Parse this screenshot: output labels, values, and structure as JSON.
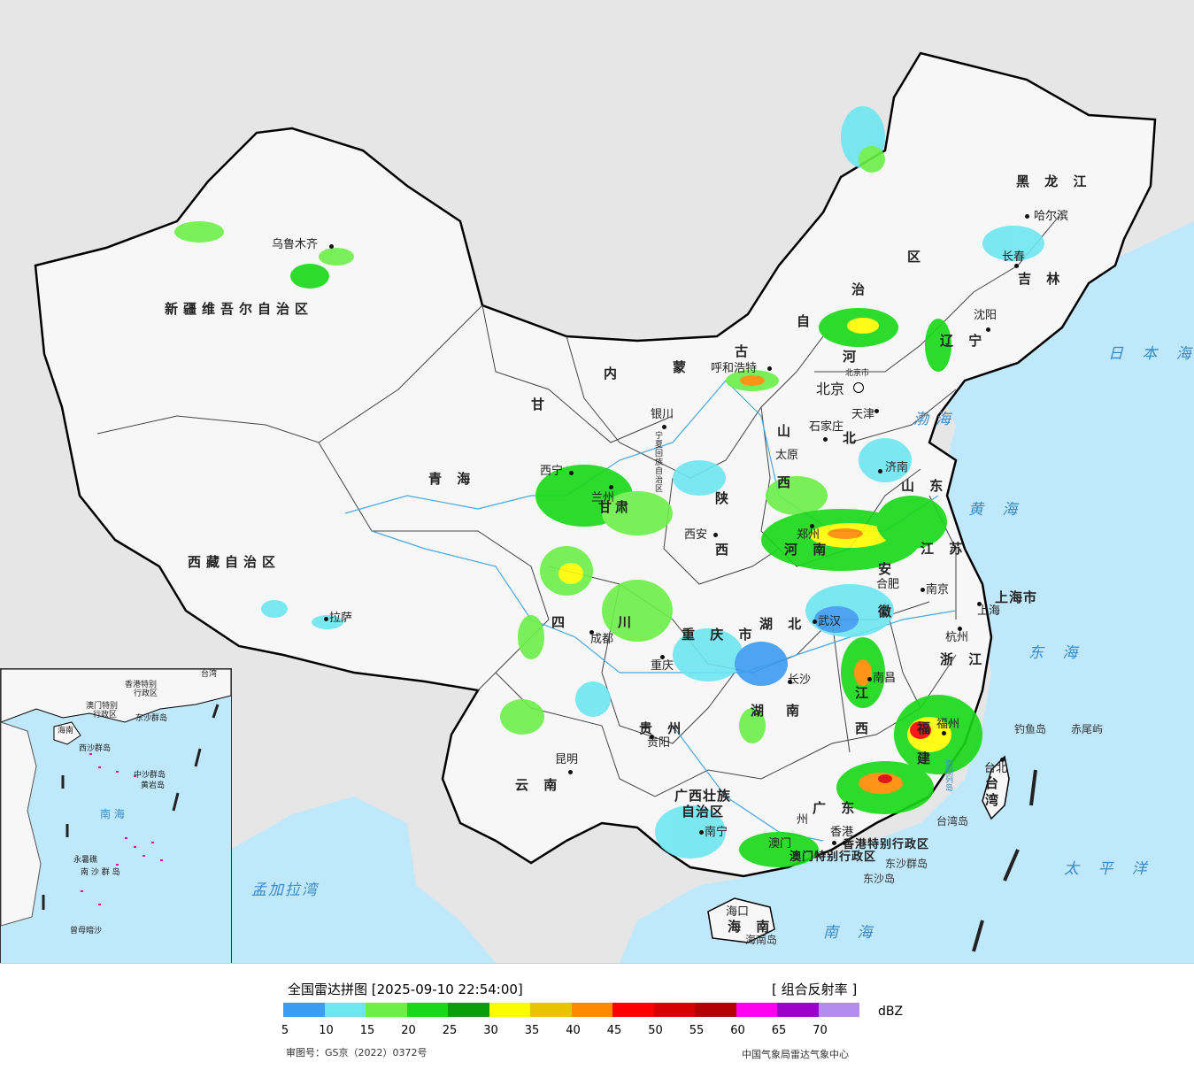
{
  "map": {
    "provinces": [
      {
        "id": "xinjiang",
        "text": "新疆维吾尔自治区"
      },
      {
        "id": "xizang",
        "text": "西藏自治区"
      },
      {
        "id": "qinghai",
        "text": "青  海"
      },
      {
        "id": "gansu",
        "text": "甘"
      },
      {
        "id": "neimenggu_1",
        "text": "内"
      },
      {
        "id": "neimenggu_2",
        "text": "蒙"
      },
      {
        "id": "neimenggu_3",
        "text": "古"
      },
      {
        "id": "neimenggu_4",
        "text": "自"
      },
      {
        "id": "neimenggu_5",
        "text": "治"
      },
      {
        "id": "neimenggu_6",
        "text": "区"
      },
      {
        "id": "heilongjiang",
        "text": "黑 龙 江"
      },
      {
        "id": "jilin",
        "text": "吉 林"
      },
      {
        "id": "liaoning",
        "text": "辽 宁"
      },
      {
        "id": "hebei_1",
        "text": "河"
      },
      {
        "id": "hebei_2",
        "text": "北"
      },
      {
        "id": "shanxi_1",
        "text": "山"
      },
      {
        "id": "shanxi_2",
        "text": "西"
      },
      {
        "id": "shandong",
        "text": "山 东"
      },
      {
        "id": "shaanxi_1",
        "text": "陕"
      },
      {
        "id": "shaanxi_2",
        "text": "西"
      },
      {
        "id": "henan",
        "text": "河 南"
      },
      {
        "id": "jiangsu",
        "text": "江 苏"
      },
      {
        "id": "anhui_1",
        "text": "安"
      },
      {
        "id": "anhui_2",
        "text": "徽"
      },
      {
        "id": "shanghai",
        "text": "上海市"
      },
      {
        "id": "hubei",
        "text": "湖  北"
      },
      {
        "id": "zhejiang",
        "text": "浙 江"
      },
      {
        "id": "sichuan_1",
        "text": "四"
      },
      {
        "id": "sichuan_2",
        "text": "川"
      },
      {
        "id": "chongqing",
        "text": "重 庆 市"
      },
      {
        "id": "hunan_1",
        "text": "湖"
      },
      {
        "id": "hunan_2",
        "text": "南"
      },
      {
        "id": "jiangxi_1",
        "text": "江"
      },
      {
        "id": "jiangxi_2",
        "text": "西"
      },
      {
        "id": "fujian_1",
        "text": "福"
      },
      {
        "id": "fujian_2",
        "text": "建"
      },
      {
        "id": "guizhou",
        "text": "贵  州"
      },
      {
        "id": "yunnan",
        "text": "云  南"
      },
      {
        "id": "guangxi_1",
        "text": "广西壮族"
      },
      {
        "id": "guangxi_2",
        "text": "自治区"
      },
      {
        "id": "guangdong",
        "text": "广  东"
      },
      {
        "id": "hainan",
        "text": "海 南"
      },
      {
        "id": "taiwan",
        "text": "台\n湾"
      },
      {
        "id": "xianggang",
        "text": "香港特别行政区"
      },
      {
        "id": "aomen",
        "text": "澳门特别行政区"
      },
      {
        "id": "ningxia",
        "text": "宁\n夏\n回\n族\n自\n治\n区"
      },
      {
        "id": "ningxia_short",
        "text": "甘肃"
      }
    ],
    "cities": [
      {
        "id": "urumqi",
        "text": "乌鲁木齐"
      },
      {
        "id": "lhasa",
        "text": "拉萨"
      },
      {
        "id": "xining",
        "text": "西宁"
      },
      {
        "id": "lanzhou",
        "text": "兰州"
      },
      {
        "id": "yinchuan",
        "text": "银川"
      },
      {
        "id": "huhehaote",
        "text": "呼和浩特"
      },
      {
        "id": "beijing",
        "text": "北京"
      },
      {
        "id": "beijingshi",
        "text": "北京市"
      },
      {
        "id": "tianjin",
        "text": "天津"
      },
      {
        "id": "shijiazhuang",
        "text": "石家庄"
      },
      {
        "id": "taiyuan",
        "text": "太原"
      },
      {
        "id": "jinan",
        "text": "济南"
      },
      {
        "id": "xian",
        "text": "西安"
      },
      {
        "id": "zhengzhou",
        "text": "郑州"
      },
      {
        "id": "hefei",
        "text": "合肥"
      },
      {
        "id": "nanjing",
        "text": "南京"
      },
      {
        "id": "shanghaicity",
        "text": "上海"
      },
      {
        "id": "wuhan",
        "text": "武汉"
      },
      {
        "id": "hangzhou",
        "text": "杭州"
      },
      {
        "id": "chengdu",
        "text": "成都"
      },
      {
        "id": "chongqingcity",
        "text": "重庆"
      },
      {
        "id": "changsha",
        "text": "长沙"
      },
      {
        "id": "nanchang",
        "text": "南昌"
      },
      {
        "id": "fuzhou",
        "text": "福州"
      },
      {
        "id": "guiyang",
        "text": "贵阳"
      },
      {
        "id": "kunming",
        "text": "昆明"
      },
      {
        "id": "nanning",
        "text": "南宁"
      },
      {
        "id": "guangzhou",
        "text": "州"
      },
      {
        "id": "hongkong",
        "text": "香港"
      },
      {
        "id": "macao",
        "text": "澳门"
      },
      {
        "id": "haikou",
        "text": "海口"
      },
      {
        "id": "taibei",
        "text": "台北"
      },
      {
        "id": "haerbin",
        "text": "哈尔滨"
      },
      {
        "id": "changchun",
        "text": "长春"
      },
      {
        "id": "shenyang",
        "text": "沈阳"
      }
    ],
    "seas": [
      {
        "id": "bohai",
        "text": "渤海"
      },
      {
        "id": "huanghai",
        "text": "黄 海"
      },
      {
        "id": "donghai",
        "text": "东 海"
      },
      {
        "id": "nanhai",
        "text": "南   海"
      },
      {
        "id": "taipingyang",
        "text": "太 平 洋"
      },
      {
        "id": "ribenhai",
        "text": "日 本 海"
      },
      {
        "id": "mengjialawan",
        "text": "孟加拉湾"
      }
    ],
    "islands": [
      {
        "id": "diaoyudao",
        "text": "钓鱼岛"
      },
      {
        "id": "chiweiyu",
        "text": "赤尾屿"
      },
      {
        "id": "dongshaqundao",
        "text": "东沙群岛"
      },
      {
        "id": "dongshadao",
        "text": "东沙岛"
      },
      {
        "id": "hainandao",
        "text": "海南岛"
      },
      {
        "id": "taiwandao",
        "text": "台湾岛"
      },
      {
        "id": "penghu",
        "text": "澎湖列岛"
      }
    ],
    "inset_labels": [
      {
        "id": "i_hongkong",
        "text": "香港特别"
      },
      {
        "id": "i_hongkong2",
        "text": "行政区"
      },
      {
        "id": "i_macao",
        "text": "澳门特别"
      },
      {
        "id": "i_macao2",
        "text": "行政区"
      },
      {
        "id": "i_dongsha",
        "text": "东沙群岛"
      },
      {
        "id": "i_hainan",
        "text": "海南"
      },
      {
        "id": "i_xisha",
        "text": "西沙群岛"
      },
      {
        "id": "i_zhongsha",
        "text": "中沙群岛"
      },
      {
        "id": "i_huangyan",
        "text": "黄岩岛"
      },
      {
        "id": "i_nanhai",
        "text": "南  海"
      },
      {
        "id": "i_nansha",
        "text": "南 沙 群 岛"
      },
      {
        "id": "i_yongshu",
        "text": "永暑礁"
      },
      {
        "id": "i_zengmu",
        "text": "曾母暗沙"
      },
      {
        "id": "i_taiwan",
        "text": "台湾"
      }
    ]
  },
  "legend": {
    "title": "全国雷达拼图 [2025-09-10 22:54:00]",
    "product": "[ 组合反射率 ]",
    "unit": "dBZ",
    "ticks": [
      "5",
      "10",
      "15",
      "20",
      "25",
      "30",
      "35",
      "40",
      "45",
      "50",
      "55",
      "60",
      "65",
      "70"
    ],
    "colors": [
      "#3c9cf0",
      "#6ee6f0",
      "#6cf048",
      "#18d818",
      "#0a9c0a",
      "#fdfb00",
      "#e8c400",
      "#ff8a00",
      "#ff0000",
      "#d80000",
      "#b40000",
      "#ff00f0",
      "#9c00c8",
      "#b48cf0"
    ],
    "approval": "审图号：GS京（2022）0372号",
    "credit": "中国气象局雷达气象中心"
  }
}
